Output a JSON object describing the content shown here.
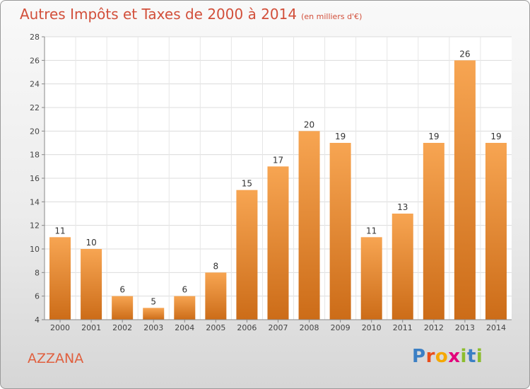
{
  "header": {
    "title": "Autres Impôts et Taxes de 2000 à 2014",
    "subtitle": "(en milliers d'€)"
  },
  "footer": {
    "commune": "AZZANA",
    "logo_letters": [
      "P",
      "r",
      "o",
      "x",
      "i",
      "t",
      "i"
    ],
    "logo_colors": [
      "#3b7fc4",
      "#e94e1b",
      "#f5a800",
      "#e3007b",
      "#8cbd2e",
      "#3b7fc4",
      "#8cbd2e"
    ]
  },
  "chart_data": {
    "type": "bar",
    "categories": [
      "2000",
      "2001",
      "2002",
      "2003",
      "2004",
      "2005",
      "2006",
      "2007",
      "2008",
      "2009",
      "2010",
      "2011",
      "2012",
      "2013",
      "2014"
    ],
    "values": [
      11,
      10,
      6,
      5,
      6,
      8,
      15,
      17,
      20,
      19,
      11,
      13,
      19,
      26,
      19
    ],
    "title": "Autres Impôts et Taxes de 2000 à 2014",
    "subtitle": "(en milliers d'€)",
    "ylim": [
      4,
      28
    ],
    "yticks": [
      4,
      6,
      8,
      10,
      12,
      14,
      16,
      18,
      20,
      22,
      24,
      26,
      28
    ],
    "grid": true,
    "bar_color_top": "#f7a552",
    "bar_color_bottom": "#cc6c18",
    "label_color": "#333333"
  }
}
